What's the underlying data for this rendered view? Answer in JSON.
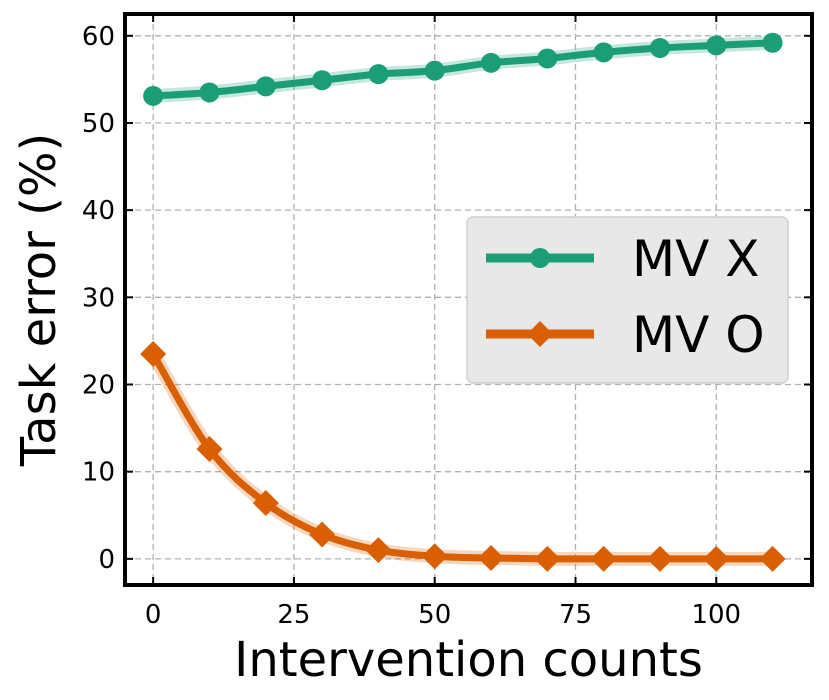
{
  "chart_data": {
    "type": "line",
    "title": "",
    "xlabel": "Intervention counts",
    "ylabel": "Task error (%)",
    "xlim": [
      -5,
      117
    ],
    "ylim": [
      -3,
      62.5
    ],
    "xticks": [
      0,
      25,
      50,
      75,
      100
    ],
    "yticks": [
      0,
      10,
      20,
      30,
      40,
      50,
      60
    ],
    "xtick_labels": [
      "0",
      "25",
      "50",
      "75",
      "100"
    ],
    "ytick_labels": [
      "0",
      "10",
      "20",
      "30",
      "40",
      "50",
      "60"
    ],
    "grid": true,
    "legend_position": "center-right",
    "x": [
      0,
      10,
      20,
      30,
      40,
      50,
      60,
      70,
      80,
      90,
      100,
      110
    ],
    "series": [
      {
        "name": "MV X",
        "marker": "circle",
        "color": "#1b9e77",
        "values": [
          53.1,
          53.5,
          54.2,
          54.9,
          55.6,
          56.0,
          56.9,
          57.4,
          58.1,
          58.6,
          58.9,
          59.2
        ]
      },
      {
        "name": "MV O",
        "marker": "diamond",
        "color": "#d95f02",
        "values": [
          23.5,
          12.6,
          6.4,
          2.8,
          1.0,
          0.3,
          0.1,
          0.0,
          0.0,
          0.0,
          0.0,
          0.0
        ]
      }
    ]
  }
}
